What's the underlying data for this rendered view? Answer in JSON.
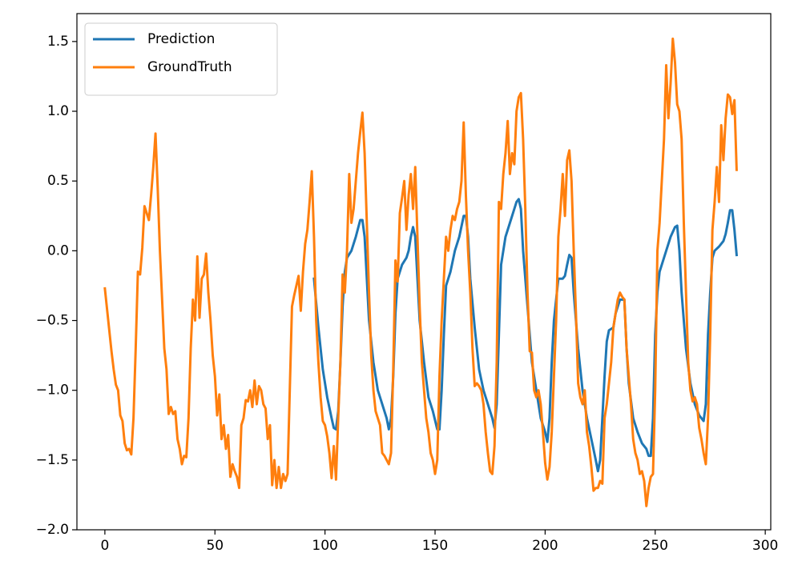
{
  "chart_data": {
    "type": "line",
    "series": [
      {
        "name": "Prediction",
        "color": "#1f77b4",
        "x": [
          95,
          97,
          99,
          101,
          103,
          104,
          105,
          106,
          107,
          108,
          109,
          110,
          112,
          114,
          116,
          117,
          118,
          119,
          120,
          122,
          124,
          126,
          128,
          129,
          130,
          131,
          132,
          133,
          135,
          137,
          138,
          139,
          140,
          141,
          142,
          143,
          145,
          147,
          149,
          151,
          152,
          153,
          154,
          155,
          157,
          159,
          161,
          163,
          164,
          165,
          166,
          168,
          170,
          172,
          174,
          176,
          177,
          178,
          179,
          180,
          182,
          184,
          186,
          187,
          188,
          189,
          190,
          192,
          194,
          196,
          198,
          200,
          201,
          202,
          203,
          204,
          205,
          206,
          208,
          209,
          210,
          211,
          212,
          213,
          215,
          217,
          219,
          221,
          223,
          224,
          225,
          226,
          227,
          228,
          229,
          231,
          232,
          233,
          234,
          236,
          237,
          238,
          240,
          242,
          244,
          246,
          247,
          248,
          249,
          250,
          251,
          252,
          253,
          255,
          257,
          259,
          260,
          261,
          262,
          264,
          266,
          268,
          270,
          272,
          273,
          274,
          275,
          276,
          277,
          279,
          281,
          282,
          283,
          284,
          285,
          286,
          287
        ],
        "values": [
          -0.2,
          -0.55,
          -0.85,
          -1.05,
          -1.2,
          -1.27,
          -1.28,
          -1.15,
          -0.8,
          -0.4,
          -0.15,
          -0.05,
          0.0,
          0.1,
          0.22,
          0.22,
          0.1,
          -0.2,
          -0.5,
          -0.8,
          -1.0,
          -1.1,
          -1.2,
          -1.28,
          -1.2,
          -0.9,
          -0.45,
          -0.2,
          -0.1,
          -0.05,
          0.0,
          0.1,
          0.17,
          0.1,
          -0.2,
          -0.5,
          -0.8,
          -1.05,
          -1.15,
          -1.28,
          -1.28,
          -1.0,
          -0.6,
          -0.25,
          -0.15,
          0.0,
          0.1,
          0.25,
          0.25,
          0.1,
          -0.2,
          -0.55,
          -0.85,
          -1.0,
          -1.1,
          -1.2,
          -1.27,
          -1.1,
          -0.6,
          -0.1,
          0.1,
          0.2,
          0.3,
          0.35,
          0.37,
          0.3,
          0.0,
          -0.4,
          -0.8,
          -1.0,
          -1.2,
          -1.3,
          -1.37,
          -1.2,
          -0.8,
          -0.5,
          -0.35,
          -0.2,
          -0.2,
          -0.18,
          -0.1,
          -0.03,
          -0.05,
          -0.3,
          -0.7,
          -1.0,
          -1.2,
          -1.35,
          -1.5,
          -1.58,
          -1.5,
          -1.2,
          -0.9,
          -0.65,
          -0.57,
          -0.55,
          -0.45,
          -0.4,
          -0.35,
          -0.35,
          -0.7,
          -0.95,
          -1.2,
          -1.3,
          -1.38,
          -1.42,
          -1.47,
          -1.47,
          -1.2,
          -0.6,
          -0.3,
          -0.15,
          -0.1,
          0.0,
          0.1,
          0.17,
          0.18,
          0.0,
          -0.3,
          -0.7,
          -0.95,
          -1.1,
          -1.18,
          -1.22,
          -1.1,
          -0.6,
          -0.3,
          -0.05,
          0.0,
          0.03,
          0.07,
          0.12,
          0.2,
          0.29,
          0.29,
          0.15,
          -0.03
        ]
      },
      {
        "name": "GroundTruth",
        "color": "#ff7f0e",
        "x": [
          0,
          1,
          2,
          3,
          4,
          5,
          6,
          7,
          8,
          9,
          10,
          11,
          12,
          13,
          14,
          15,
          16,
          17,
          18,
          19,
          20,
          21,
          22,
          23,
          24,
          25,
          26,
          27,
          28,
          29,
          30,
          31,
          32,
          33,
          34,
          35,
          36,
          37,
          38,
          39,
          40,
          41,
          42,
          43,
          44,
          45,
          46,
          47,
          48,
          49,
          50,
          51,
          52,
          53,
          54,
          55,
          56,
          57,
          58,
          59,
          60,
          61,
          62,
          63,
          64,
          65,
          66,
          67,
          68,
          69,
          70,
          71,
          72,
          73,
          74,
          75,
          76,
          77,
          78,
          79,
          80,
          81,
          82,
          83,
          84,
          85,
          86,
          87,
          88,
          89,
          90,
          91,
          92,
          93,
          94,
          95,
          96,
          97,
          98,
          99,
          100,
          101,
          102,
          103,
          104,
          105,
          106,
          107,
          108,
          109,
          110,
          111,
          112,
          113,
          114,
          115,
          116,
          117,
          118,
          119,
          120,
          121,
          122,
          123,
          124,
          125,
          126,
          127,
          128,
          129,
          130,
          131,
          132,
          133,
          134,
          135,
          136,
          137,
          138,
          139,
          140,
          141,
          142,
          143,
          144,
          145,
          146,
          147,
          148,
          149,
          150,
          151,
          152,
          153,
          154,
          155,
          156,
          157,
          158,
          159,
          160,
          161,
          162,
          163,
          164,
          165,
          166,
          167,
          168,
          169,
          170,
          171,
          172,
          173,
          174,
          175,
          176,
          177,
          178,
          179,
          180,
          181,
          182,
          183,
          184,
          185,
          186,
          187,
          188,
          189,
          190,
          191,
          192,
          193,
          194,
          195,
          196,
          197,
          198,
          199,
          200,
          201,
          202,
          203,
          204,
          205,
          206,
          207,
          208,
          209,
          210,
          211,
          212,
          213,
          214,
          215,
          216,
          217,
          218,
          219,
          220,
          221,
          222,
          223,
          224,
          225,
          226,
          227,
          228,
          229,
          230,
          231,
          232,
          233,
          234,
          235,
          236,
          237,
          238,
          239,
          240,
          241,
          242,
          243,
          244,
          245,
          246,
          247,
          248,
          249,
          250,
          251,
          252,
          253,
          254,
          255,
          256,
          257,
          258,
          259,
          260,
          261,
          262,
          263,
          264,
          265,
          266,
          267,
          268,
          269,
          270,
          271,
          272,
          273,
          274,
          275,
          276,
          277,
          278,
          279,
          280,
          281,
          282,
          283,
          284,
          285,
          286,
          287
        ],
        "values": [
          -0.27,
          -0.42,
          -0.57,
          -0.72,
          -0.85,
          -0.96,
          -1.0,
          -1.18,
          -1.22,
          -1.38,
          -1.43,
          -1.42,
          -1.46,
          -1.2,
          -0.7,
          -0.15,
          -0.17,
          0.02,
          0.32,
          0.27,
          0.22,
          0.4,
          0.6,
          0.84,
          0.45,
          0.0,
          -0.35,
          -0.7,
          -0.85,
          -1.17,
          -1.12,
          -1.17,
          -1.15,
          -1.35,
          -1.42,
          -1.53,
          -1.47,
          -1.48,
          -1.2,
          -0.7,
          -0.35,
          -0.5,
          -0.04,
          -0.48,
          -0.2,
          -0.17,
          -0.02,
          -0.3,
          -0.5,
          -0.75,
          -0.9,
          -1.18,
          -1.03,
          -1.35,
          -1.25,
          -1.42,
          -1.32,
          -1.62,
          -1.53,
          -1.58,
          -1.62,
          -1.7,
          -1.25,
          -1.2,
          -1.07,
          -1.08,
          -1.0,
          -1.12,
          -0.93,
          -1.1,
          -0.97,
          -1.0,
          -1.1,
          -1.13,
          -1.35,
          -1.25,
          -1.68,
          -1.5,
          -1.7,
          -1.55,
          -1.7,
          -1.6,
          -1.65,
          -1.6,
          -1.0,
          -0.4,
          -0.32,
          -0.25,
          -0.18,
          -0.43,
          -0.15,
          0.05,
          0.15,
          0.35,
          0.57,
          0.1,
          -0.5,
          -0.8,
          -1.05,
          -1.22,
          -1.25,
          -1.33,
          -1.45,
          -1.63,
          -1.4,
          -1.64,
          -1.2,
          -0.8,
          -0.17,
          -0.3,
          0.0,
          0.55,
          0.2,
          0.3,
          0.5,
          0.7,
          0.85,
          0.99,
          0.7,
          0.2,
          -0.3,
          -0.75,
          -1.0,
          -1.15,
          -1.2,
          -1.25,
          -1.45,
          -1.47,
          -1.5,
          -1.53,
          -1.45,
          -0.85,
          -0.07,
          -0.22,
          0.27,
          0.38,
          0.5,
          0.15,
          0.4,
          0.55,
          0.3,
          0.6,
          0.1,
          -0.4,
          -0.8,
          -1.0,
          -1.2,
          -1.3,
          -1.45,
          -1.5,
          -1.6,
          -1.5,
          -0.9,
          -0.5,
          -0.2,
          0.1,
          0.0,
          0.15,
          0.25,
          0.22,
          0.3,
          0.35,
          0.5,
          0.92,
          0.4,
          0.0,
          -0.3,
          -0.7,
          -0.97,
          -0.95,
          -0.97,
          -1.0,
          -1.1,
          -1.3,
          -1.45,
          -1.58,
          -1.6,
          -1.4,
          -0.8,
          0.35,
          0.3,
          0.55,
          0.7,
          0.93,
          0.55,
          0.7,
          0.62,
          1.0,
          1.1,
          1.13,
          0.8,
          0.3,
          -0.3,
          -0.72,
          -0.73,
          -1.0,
          -1.05,
          -1.0,
          -1.1,
          -1.3,
          -1.52,
          -1.64,
          -1.55,
          -1.3,
          -0.9,
          -0.5,
          0.1,
          0.3,
          0.55,
          0.25,
          0.65,
          0.72,
          0.5,
          0.0,
          -0.45,
          -0.95,
          -1.05,
          -1.1,
          -1.0,
          -1.3,
          -1.4,
          -1.55,
          -1.72,
          -1.7,
          -1.7,
          -1.65,
          -1.67,
          -1.2,
          -1.1,
          -0.95,
          -0.8,
          -0.55,
          -0.45,
          -0.35,
          -0.3,
          -0.33,
          -0.35,
          -0.7,
          -0.9,
          -1.1,
          -1.35,
          -1.45,
          -1.5,
          -1.6,
          -1.58,
          -1.65,
          -1.83,
          -1.7,
          -1.62,
          -1.6,
          -1.0,
          0.0,
          0.2,
          0.5,
          0.8,
          1.33,
          0.95,
          1.2,
          1.52,
          1.35,
          1.05,
          1.0,
          0.8,
          0.2,
          -0.3,
          -0.8,
          -1.0,
          -1.08,
          -1.05,
          -1.1,
          -1.27,
          -1.35,
          -1.45,
          -1.53,
          -1.2,
          -0.6,
          0.15,
          0.35,
          0.6,
          0.35,
          0.9,
          0.65,
          0.95,
          1.12,
          1.1,
          0.98,
          1.08,
          0.58
        ]
      }
    ],
    "xlim": [
      -12.7,
      302.5
    ],
    "ylim": [
      -2.0,
      1.7
    ],
    "xticks": [
      0,
      50,
      100,
      150,
      200,
      250,
      300
    ],
    "yticks": [
      {
        "value": -2.0,
        "label": "−2.0"
      },
      {
        "value": -1.5,
        "label": "−1.5"
      },
      {
        "value": -1.0,
        "label": "−1.0"
      },
      {
        "value": -0.5,
        "label": "−0.5"
      },
      {
        "value": 0.0,
        "label": "0.0"
      },
      {
        "value": 0.5,
        "label": "0.5"
      },
      {
        "value": 1.0,
        "label": "1.0"
      },
      {
        "value": 1.5,
        "label": "1.5"
      }
    ],
    "legend": "upper left"
  }
}
